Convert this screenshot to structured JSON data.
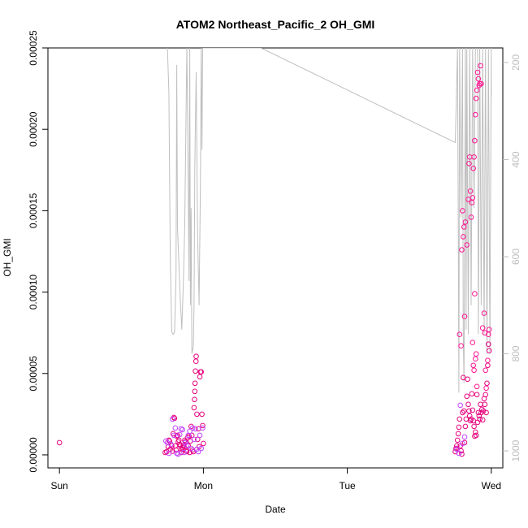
{
  "chart_data": {
    "type": "scatter",
    "title": "ATOM2 Northeast_Pacific_2 OH_GMI",
    "xlabel": "Date",
    "ylabel": "OH_GMI",
    "x_ticks": [
      "Sun",
      "Mon",
      "Tue",
      "Wed"
    ],
    "xlim": [
      -0.08,
      3.08
    ],
    "ylim": [
      -8e-06,
      0.00025
    ],
    "y_ticks": [
      "0.00000",
      "0.00005",
      "0.00010",
      "0.00015",
      "0.00020",
      "0.00025"
    ],
    "y_tick_values": [
      0,
      5e-05,
      0.0001,
      0.00015,
      0.0002,
      0.00025
    ],
    "right_axis": {
      "ticks": [
        "200",
        "400",
        "600",
        "800",
        "1000"
      ],
      "tick_values": [
        200,
        400,
        600,
        800,
        1000
      ],
      "ylim": [
        1035,
        170
      ],
      "color": "#bdbdbd"
    },
    "grid": false,
    "pressure_trace": {
      "color": "#bfbfbf",
      "x": [
        0.75,
        0.76,
        0.77,
        0.78,
        0.79,
        0.8,
        0.81,
        0.815,
        0.82,
        0.84,
        0.85,
        0.86,
        0.87,
        0.88,
        0.885,
        0.89,
        0.9,
        0.905,
        0.91,
        0.915,
        0.92,
        0.93,
        0.935,
        0.94,
        0.945,
        0.95,
        0.96,
        0.97,
        0.98,
        0.985,
        0.99,
        0.995,
        1.0,
        1.0,
        1.4,
        2.75,
        2.765,
        2.77,
        2.775,
        2.78,
        2.79,
        2.8,
        2.805,
        2.81,
        2.82,
        2.825,
        2.83,
        2.84,
        2.85,
        2.86,
        2.87,
        2.88,
        2.89,
        2.9,
        2.905,
        2.91,
        2.92,
        2.93,
        2.94,
        2.95,
        2.96,
        2.97,
        2.98,
        2.99,
        3.0,
        3.0
      ],
      "y": [
        170,
        260,
        600,
        755,
        760,
        755,
        640,
        205,
        540,
        690,
        750,
        660,
        540,
        300,
        170,
        300,
        650,
        170,
        700,
        500,
        800,
        785,
        700,
        420,
        320,
        220,
        560,
        700,
        440,
        170,
        380,
        170,
        170,
        170,
        170,
        365,
        170,
        500,
        880,
        170,
        520,
        170,
        760,
        860,
        170,
        750,
        170,
        760,
        170,
        700,
        170,
        500,
        170,
        160,
        180,
        760,
        170,
        700,
        170,
        760,
        170,
        800,
        170,
        800,
        170,
        270
      ],
      "y_units": "hPa (right axis, inverted)"
    },
    "series": [
      {
        "color": "#e6007e",
        "points": [
          [
            0.0,
            7.5e-06
          ],
          [
            0.735,
            1.5e-06
          ],
          [
            0.745,
            2e-06
          ],
          [
            0.755,
            5e-06
          ],
          [
            0.76,
            9e-06
          ],
          [
            0.765,
            8.5e-06
          ],
          [
            0.77,
            3.5e-06
          ],
          [
            0.78,
            5.5e-06
          ],
          [
            0.785,
            2.3e-06
          ],
          [
            0.79,
            1.3e-05
          ],
          [
            0.795,
            2.3e-05
          ],
          [
            0.8,
            2.25e-05
          ],
          [
            0.805,
            5.5e-06
          ],
          [
            0.81,
            3e-06
          ],
          [
            0.815,
            1.15e-05
          ],
          [
            0.82,
            1.2e-05
          ],
          [
            0.825,
            8e-06
          ],
          [
            0.83,
            9e-06
          ],
          [
            0.835,
            6.5e-06
          ],
          [
            0.84,
            5.5e-06
          ],
          [
            0.845,
            1.5e-06
          ],
          [
            0.85,
            3.5e-06
          ],
          [
            0.855,
            4.5e-06
          ],
          [
            0.86,
            6e-06
          ],
          [
            0.865,
            5e-06
          ],
          [
            0.87,
            9e-06
          ],
          [
            0.875,
            8e-06
          ],
          [
            0.88,
            2.5e-06
          ],
          [
            0.885,
            2e-06
          ],
          [
            0.89,
            1.05e-05
          ],
          [
            0.895,
            5.5e-06
          ],
          [
            0.9,
            1.15e-05
          ],
          [
            0.905,
            1.5e-06
          ],
          [
            0.91,
            8.5e-06
          ],
          [
            0.915,
            1.75e-05
          ],
          [
            0.92,
            1.2e-05
          ],
          [
            0.925,
            3e-06
          ],
          [
            0.93,
            2e-06
          ],
          [
            0.935,
            2.9e-05
          ],
          [
            0.938,
            3.4e-05
          ],
          [
            0.94,
            3.9e-05
          ],
          [
            0.942,
            4.4e-05
          ],
          [
            0.945,
            5.15e-05
          ],
          [
            0.948,
            5.75e-05
          ],
          [
            0.95,
            6.05e-05
          ],
          [
            0.955,
            2.5e-05
          ],
          [
            0.96,
            9.5e-06
          ],
          [
            0.965,
            1.6e-05
          ],
          [
            0.97,
            5e-06
          ],
          [
            0.975,
            4.8e-05
          ],
          [
            0.98,
            5.1e-05
          ],
          [
            0.985,
            5.1e-05
          ],
          [
            0.99,
            2.5e-05
          ],
          [
            0.995,
            1.8e-05
          ],
          [
            1.0,
            7e-06
          ],
          [
            2.75,
            2e-06
          ],
          [
            2.755,
            4e-06
          ],
          [
            2.76,
            5.5e-06
          ],
          [
            2.765,
            9e-06
          ],
          [
            2.77,
            1.3e-05
          ],
          [
            2.775,
            1.7e-05
          ],
          [
            2.78,
            2.2e-05
          ],
          [
            2.785,
            5.5e-06
          ],
          [
            2.79,
            2.5e-06
          ],
          [
            2.795,
            5e-07
          ],
          [
            2.8,
            2.6e-05
          ],
          [
            2.805,
            4.75e-05
          ],
          [
            2.81,
            2.7e-05
          ],
          [
            2.815,
            7.5e-06
          ],
          [
            2.82,
            1.75e-05
          ],
          [
            2.825,
            2.2e-05
          ],
          [
            2.83,
            3.6e-05
          ],
          [
            2.835,
            4.65e-05
          ],
          [
            2.84,
            3.1e-05
          ],
          [
            2.845,
            2.7e-05
          ],
          [
            2.85,
            2.4e-05
          ],
          [
            2.855,
            2.1e-05
          ],
          [
            2.86,
            2.2e-05
          ],
          [
            2.865,
            3.75e-05
          ],
          [
            2.87,
            2.75e-05
          ],
          [
            2.875,
            2.1e-05
          ],
          [
            2.88,
            1.75e-05
          ],
          [
            2.885,
            1.15e-05
          ],
          [
            2.89,
            1.4e-05
          ],
          [
            2.895,
            1.2e-05
          ],
          [
            2.9,
            3.7e-05
          ],
          [
            2.905,
            2e-05
          ],
          [
            2.91,
            2.6e-05
          ],
          [
            2.915,
            2.4e-05
          ],
          [
            2.92,
            2.2e-05
          ],
          [
            2.925,
            3.1e-05
          ],
          [
            2.93,
            2.6e-05
          ],
          [
            2.935,
            2.8e-05
          ],
          [
            2.94,
            2.15e-05
          ],
          [
            2.945,
            2.7e-05
          ],
          [
            2.95,
            3.45e-05
          ],
          [
            2.955,
            3.1e-05
          ],
          [
            2.96,
            3.7e-05
          ],
          [
            2.965,
            2.6e-05
          ],
          [
            2.97,
            4.4e-05
          ],
          [
            2.975,
            5.5e-05
          ],
          [
            2.98,
            6.8e-05
          ],
          [
            2.985,
            6.4e-05
          ]
        ]
      },
      {
        "color": "#c040ff",
        "points": [
          [
            0.74,
            8.5e-06
          ],
          [
            0.75,
            7.5e-06
          ],
          [
            0.76,
            1e-06
          ],
          [
            0.775,
            6.5e-06
          ],
          [
            0.785,
            2.2e-05
          ],
          [
            0.795,
            1.2e-05
          ],
          [
            0.805,
            1.65e-05
          ],
          [
            0.815,
            1e-06
          ],
          [
            0.825,
            5e-07
          ],
          [
            0.835,
            1.25e-05
          ],
          [
            0.845,
            1.6e-05
          ],
          [
            0.855,
            1.55e-05
          ],
          [
            0.865,
            1.5e-06
          ],
          [
            0.875,
            7.5e-06
          ],
          [
            0.885,
            6e-06
          ],
          [
            0.895,
            1.2e-05
          ],
          [
            0.905,
            1.45e-05
          ],
          [
            0.915,
            4e-06
          ],
          [
            0.925,
            1.65e-05
          ],
          [
            0.935,
            9.5e-06
          ],
          [
            0.945,
            1.6e-05
          ],
          [
            0.955,
            3.5e-06
          ],
          [
            0.965,
            2e-06
          ],
          [
            0.975,
            1.2e-05
          ],
          [
            0.985,
            4e-06
          ],
          [
            0.995,
            1.65e-05
          ],
          [
            2.76,
            3.5e-06
          ],
          [
            2.775,
            1e-06
          ],
          [
            2.785,
            3.05e-05
          ],
          [
            2.8,
            7e-06
          ],
          [
            2.815,
            1.1e-05
          ]
        ]
      },
      {
        "color": "#ff1493",
        "points": [
          [
            2.78,
            7.4e-05
          ],
          [
            2.79,
            6.7e-05
          ],
          [
            2.795,
            0.000126
          ],
          [
            2.8,
            0.00015
          ],
          [
            2.805,
            0.000134
          ],
          [
            2.81,
            0.00014
          ],
          [
            2.815,
            8.5e-05
          ],
          [
            2.82,
            0.000143
          ],
          [
            2.83,
            0.000129
          ],
          [
            2.84,
            0.000157
          ],
          [
            2.845,
            0.000179
          ],
          [
            2.85,
            0.000183
          ],
          [
            2.855,
            0.000162
          ],
          [
            2.86,
            0.000146
          ],
          [
            2.865,
            0.000155
          ],
          [
            2.87,
            0.000158
          ],
          [
            2.875,
            0.000176
          ],
          [
            2.88,
            0.000183
          ],
          [
            2.885,
            0.000193
          ],
          [
            2.89,
            0.000209
          ],
          [
            2.895,
            0.000219
          ],
          [
            2.9,
            0.000224
          ],
          [
            2.905,
            0.000235
          ],
          [
            2.91,
            0.000231
          ],
          [
            2.915,
            0.000227
          ],
          [
            2.92,
            0.000228
          ],
          [
            2.925,
            0.000239
          ],
          [
            2.93,
            0.000228
          ],
          [
            2.94,
            7.8e-05
          ],
          [
            2.95,
            8.7e-05
          ],
          [
            2.955,
            7.5e-05
          ],
          [
            2.96,
            5.2e-05
          ],
          [
            2.965,
            4.1e-05
          ],
          [
            2.975,
            5.8e-05
          ],
          [
            2.98,
            7.4e-05
          ],
          [
            2.985,
            7.7e-05
          ],
          [
            2.87,
            6.9e-05
          ],
          [
            2.875,
            5.5e-05
          ],
          [
            2.88,
            5.2e-05
          ],
          [
            2.885,
            9.9e-05
          ],
          [
            2.89,
            5.9e-05
          ],
          [
            2.895,
            6.2e-05
          ],
          [
            2.9,
            4.2e-05
          ]
        ]
      }
    ]
  }
}
